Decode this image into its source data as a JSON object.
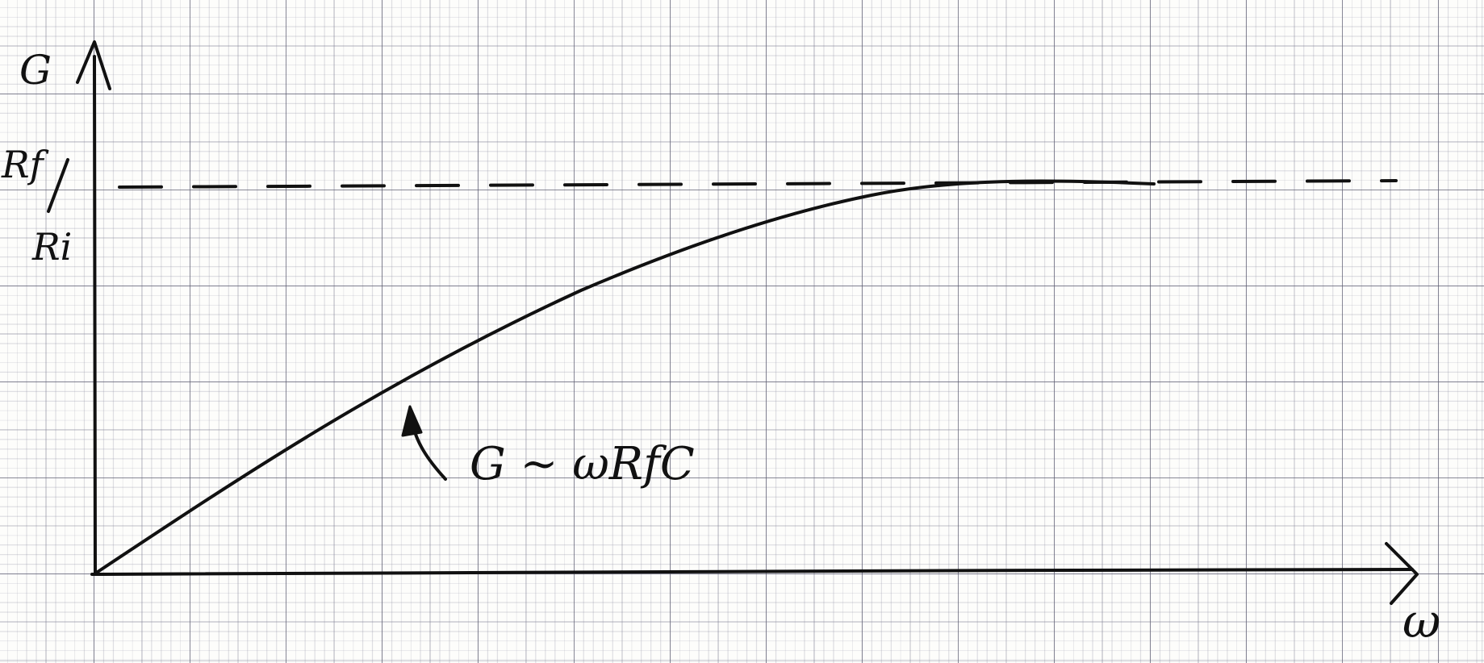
{
  "labels": {
    "y_axis": "G",
    "x_axis": "ω",
    "asymptote_numerator": "Rf",
    "asymptote_denominator": "Ri",
    "annotation": "G ~ ωRfC"
  },
  "colors": {
    "ink": "#111111",
    "paper": "#fdfdfb",
    "grid": "#6a6a80"
  }
}
